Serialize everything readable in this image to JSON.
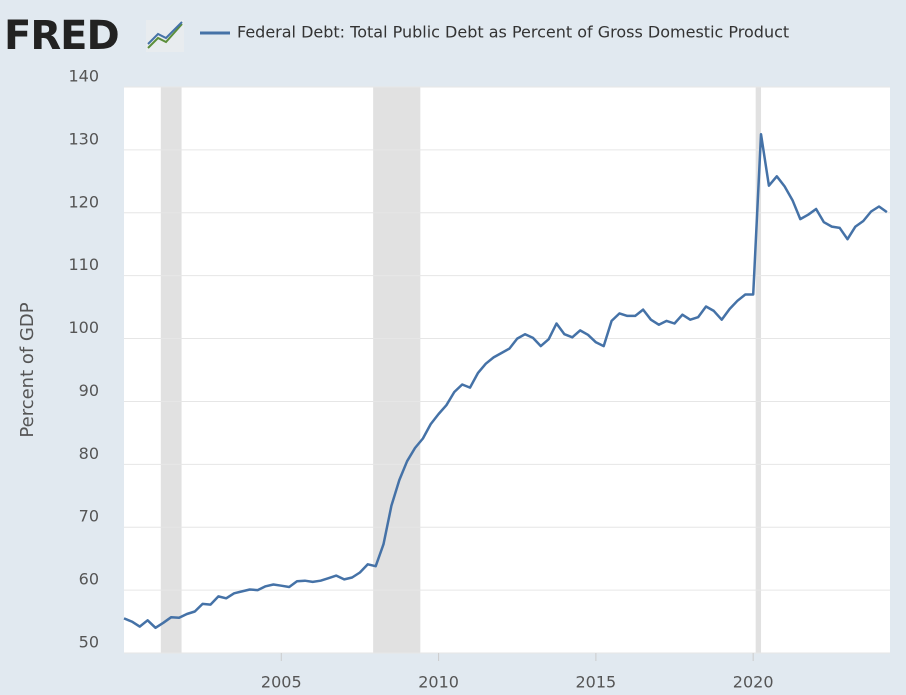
{
  "chart_data": {
    "type": "line",
    "brand": "FRED",
    "title": "Federal Debt: Total Public Debt as Percent of Gross Domestic Product",
    "y_label": "Percent of GDP",
    "recessions": [
      [
        2001.17,
        2001.83
      ],
      [
        2007.92,
        2009.42
      ],
      [
        2020.08,
        2020.25
      ]
    ],
    "x": [
      2000,
      2000.25,
      2000.5,
      2000.75,
      2001,
      2001.25,
      2001.5,
      2001.75,
      2002,
      2002.25,
      2002.5,
      2002.75,
      2003,
      2003.25,
      2003.5,
      2003.75,
      2004,
      2004.25,
      2004.5,
      2004.75,
      2005,
      2005.25,
      2005.5,
      2005.75,
      2006,
      2006.25,
      2006.5,
      2006.75,
      2007,
      2007.25,
      2007.5,
      2007.75,
      2008,
      2008.25,
      2008.5,
      2008.75,
      2009,
      2009.25,
      2009.5,
      2009.75,
      2010,
      2010.25,
      2010.5,
      2010.75,
      2011,
      2011.25,
      2011.5,
      2011.75,
      2012,
      2012.25,
      2012.5,
      2012.75,
      2013,
      2013.25,
      2013.5,
      2013.75,
      2014,
      2014.25,
      2014.5,
      2014.75,
      2015,
      2015.25,
      2015.5,
      2015.75,
      2016,
      2016.25,
      2016.5,
      2016.75,
      2017,
      2017.25,
      2017.5,
      2017.75,
      2018,
      2018.25,
      2018.5,
      2018.75,
      2019,
      2019.25,
      2019.5,
      2019.75,
      2020,
      2020.25,
      2020.5,
      2020.75,
      2021,
      2021.25,
      2021.5,
      2021.75,
      2022,
      2022.25,
      2022.5,
      2022.75,
      2023,
      2023.25,
      2023.5,
      2023.75,
      2024,
      2024.25
    ],
    "series": [
      {
        "name": "Federal Debt: Total Public Debt as Percent of Gross Domestic Product",
        "color": "#4572a7",
        "values": [
          55.5,
          55,
          54.2,
          55.2,
          54,
          54.8,
          55.7,
          55.6,
          56.2,
          56.6,
          57.8,
          57.7,
          59,
          58.7,
          59.5,
          59.8,
          60.1,
          60,
          60.6,
          60.9,
          60.7,
          60.5,
          61.4,
          61.5,
          61.3,
          61.5,
          61.9,
          62.3,
          61.7,
          62,
          62.8,
          64.1,
          63.8,
          67.3,
          73.4,
          77.5,
          80.5,
          82.6,
          84.1,
          86.4,
          88,
          89.4,
          91.5,
          92.7,
          92.2,
          94.5,
          96,
          97,
          97.7,
          98.4,
          100,
          100.7,
          100.1,
          98.8,
          99.9,
          102.4,
          100.7,
          100.2,
          101.3,
          100.6,
          99.4,
          98.8,
          102.8,
          104,
          103.6,
          103.6,
          104.6,
          103,
          102.2,
          102.8,
          102.4,
          103.8,
          103,
          103.4,
          105.1,
          104.4,
          103,
          104.7,
          106,
          107,
          107,
          132.5,
          124.3,
          125.8,
          124.2,
          122,
          119,
          119.7,
          120.6,
          118.5,
          117.8,
          117.6,
          115.8,
          117.8,
          118.7,
          120.2,
          121,
          120.1
        ]
      }
    ],
    "xlim": [
      2000,
      2024.35
    ],
    "xticks": [
      2005,
      2010,
      2015,
      2020
    ],
    "ylim": [
      50,
      140
    ],
    "yticks": [
      50,
      60,
      70,
      80,
      90,
      100,
      110,
      120,
      130,
      140
    ],
    "grid": true
  }
}
